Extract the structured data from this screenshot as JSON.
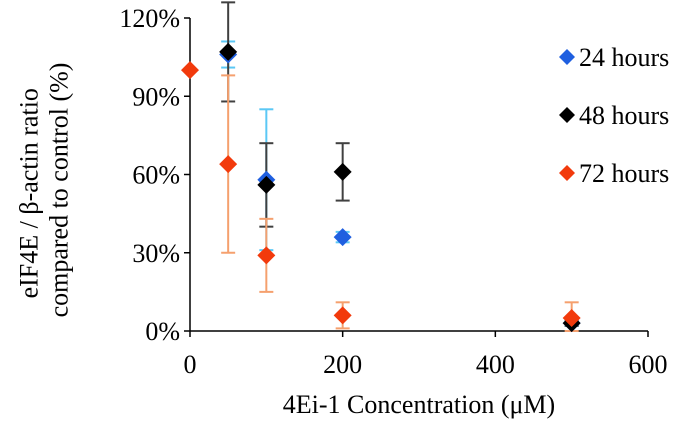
{
  "chart_data": {
    "type": "scatter",
    "title": "",
    "xlabel": "4Ei-1 Concentration (μM)",
    "ylabel_lines": [
      "eIF4E / β-actin ratio",
      "compared to control (%)"
    ],
    "xlim": [
      0,
      600
    ],
    "ylim": [
      0,
      120
    ],
    "x_ticks": [
      0,
      200,
      400,
      600
    ],
    "x_tick_labels": [
      "0",
      "200",
      "400",
      "600"
    ],
    "y_ticks": [
      0,
      30,
      60,
      90,
      120
    ],
    "y_tick_labels": [
      "0%",
      "30%",
      "60%",
      "90%",
      "120%"
    ],
    "grid": false,
    "legend_position": "right",
    "series": [
      {
        "name": "24 hours",
        "color": "#1f5fe0",
        "error_color": "#5bc8f5",
        "marker": "diamond",
        "points": [
          {
            "x": 50,
            "y": 106,
            "err": 5
          },
          {
            "x": 100,
            "y": 58,
            "err": 27
          },
          {
            "x": 200,
            "y": 36,
            "err": 2
          },
          {
            "x": 500,
            "y": 3,
            "err": 1
          }
        ]
      },
      {
        "name": "48 hours",
        "color": "#000000",
        "error_color": "#404040",
        "marker": "diamond",
        "points": [
          {
            "x": 50,
            "y": 107,
            "err": 19
          },
          {
            "x": 100,
            "y": 56,
            "err": 16
          },
          {
            "x": 200,
            "y": 61,
            "err": 11
          },
          {
            "x": 500,
            "y": 3,
            "err": 1
          }
        ]
      },
      {
        "name": "72 hours",
        "color": "#f23a0c",
        "error_color": "#f5a06e",
        "marker": "diamond",
        "points": [
          {
            "x": 0,
            "y": 100,
            "err": 0
          },
          {
            "x": 50,
            "y": 64,
            "err": 34
          },
          {
            "x": 100,
            "y": 29,
            "err": 14
          },
          {
            "x": 200,
            "y": 6,
            "err": 5
          },
          {
            "x": 500,
            "y": 5,
            "err": 6
          }
        ]
      }
    ]
  }
}
